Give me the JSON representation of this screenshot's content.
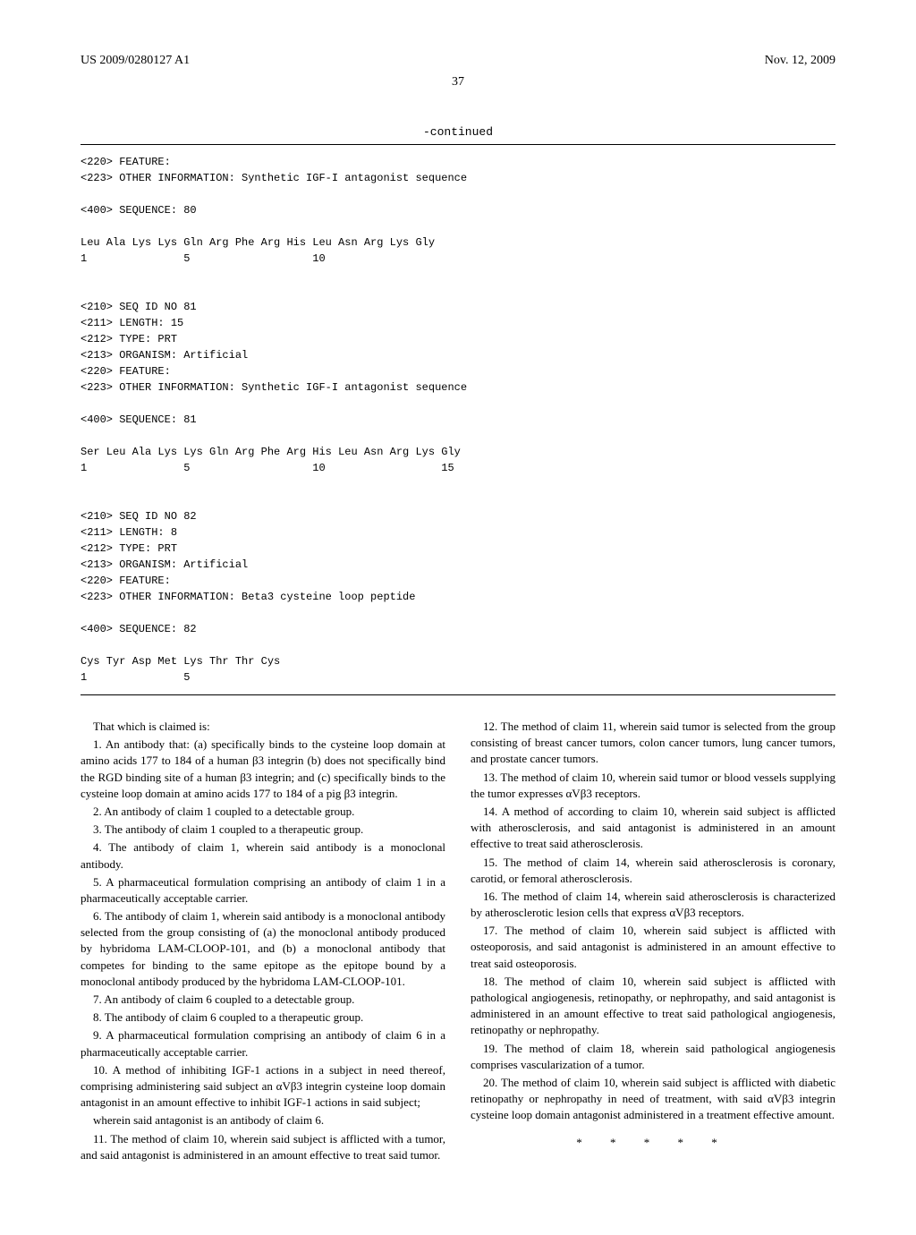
{
  "header": {
    "left": "US 2009/0280127 A1",
    "right": "Nov. 12, 2009"
  },
  "page_number": "37",
  "continued_label": "-continued",
  "seq_text": "<220> FEATURE:\n<223> OTHER INFORMATION: Synthetic IGF-I antagonist sequence\n\n<400> SEQUENCE: 80\n\nLeu Ala Lys Lys Gln Arg Phe Arg His Leu Asn Arg Lys Gly\n1               5                   10\n\n\n<210> SEQ ID NO 81\n<211> LENGTH: 15\n<212> TYPE: PRT\n<213> ORGANISM: Artificial\n<220> FEATURE:\n<223> OTHER INFORMATION: Synthetic IGF-I antagonist sequence\n\n<400> SEQUENCE: 81\n\nSer Leu Ala Lys Lys Gln Arg Phe Arg His Leu Asn Arg Lys Gly\n1               5                   10                  15\n\n\n<210> SEQ ID NO 82\n<211> LENGTH: 8\n<212> TYPE: PRT\n<213> ORGANISM: Artificial\n<220> FEATURE:\n<223> OTHER INFORMATION: Beta3 cysteine loop peptide\n\n<400> SEQUENCE: 82\n\nCys Tyr Asp Met Lys Thr Thr Cys\n1               5",
  "claims": {
    "intro": "That which is claimed is:",
    "c1": "1. An antibody that: (a) specifically binds to the cysteine loop domain at amino acids 177 to 184 of a human β3 integrin (b) does not specifically bind the RGD binding site of a human β3 integrin; and (c) specifically binds to the cysteine loop domain at amino acids 177 to 184 of a pig β3 integrin.",
    "c2": "2. An antibody of claim 1 coupled to a detectable group.",
    "c3": "3. The antibody of claim 1 coupled to a therapeutic group.",
    "c4": "4. The antibody of claim 1, wherein said antibody is a monoclonal antibody.",
    "c5": "5. A pharmaceutical formulation comprising an antibody of claim 1 in a pharmaceutically acceptable carrier.",
    "c6": "6. The antibody of claim 1, wherein said antibody is a monoclonal antibody selected from the group consisting of (a) the monoclonal antibody produced by hybridoma LAM-CLOOP-101, and (b) a monoclonal antibody that competes for binding to the same epitope as the epitope bound by a monoclonal antibody produced by the hybridoma LAM-CLOOP-101.",
    "c7": "7. An antibody of claim 6 coupled to a detectable group.",
    "c8": "8. The antibody of claim 6 coupled to a therapeutic group.",
    "c9": "9. A pharmaceutical formulation comprising an antibody of claim 6 in a pharmaceutically acceptable carrier.",
    "c10": "10. A method of inhibiting IGF-1 actions in a subject in need thereof, comprising administering said subject an αVβ3 integrin cysteine loop domain antagonist in an amount effective to inhibit IGF-1 actions in said subject;",
    "c10b": "wherein said antagonist is an antibody of claim 6.",
    "c11": "11. The method of claim 10, wherein said subject is afflicted with a tumor, and said antagonist is administered in an amount effective to treat said tumor.",
    "c12": "12. The method of claim 11, wherein said tumor is selected from the group consisting of breast cancer tumors, colon cancer tumors, lung cancer tumors, and prostate cancer tumors.",
    "c13": "13. The method of claim 10, wherein said tumor or blood vessels supplying the tumor expresses αVβ3 receptors.",
    "c14": "14. A method of according to claim 10, wherein said subject is afflicted with atherosclerosis, and said antagonist is administered in an amount effective to treat said atherosclerosis.",
    "c15": "15. The method of claim 14, wherein said atherosclerosis is coronary, carotid, or femoral atherosclerosis.",
    "c16": "16. The method of claim 14, wherein said atherosclerosis is characterized by atherosclerotic lesion cells that express αVβ3 receptors.",
    "c17": "17. The method of claim 10, wherein said subject is afflicted with osteoporosis, and said antagonist is administered in an amount effective to treat said osteoporosis.",
    "c18": "18. The method of claim 10, wherein said subject is afflicted with pathological angiogenesis, retinopathy, or nephropathy, and said antagonist is administered in an amount effective to treat said pathological angiogenesis, retinopathy or nephropathy.",
    "c19": "19. The method of claim 18, wherein said pathological angiogenesis comprises vascularization of a tumor.",
    "c20": "20. The method of claim 10, wherein said subject is afflicted with diabetic retinopathy or nephropathy in need of treatment, with said αVβ3 integrin cysteine loop domain antagonist administered in a treatment effective amount."
  },
  "stars": "* * * * *"
}
